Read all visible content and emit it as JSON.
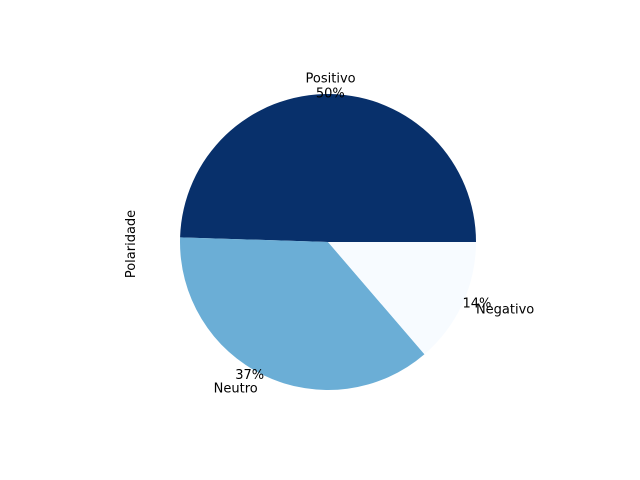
{
  "chart_data": {
    "type": "pie",
    "ylabel": "Polaridade",
    "slices": [
      {
        "label": "Positivo",
        "value": 49.5,
        "pct_label": "50%",
        "color": "#08306b"
      },
      {
        "label": "Neutro",
        "value": 36.8,
        "pct_label": "37%",
        "color": "#6baed6"
      },
      {
        "label": "Negativo",
        "value": 13.7,
        "pct_label": "14%",
        "color": "#f7fbff"
      }
    ]
  }
}
